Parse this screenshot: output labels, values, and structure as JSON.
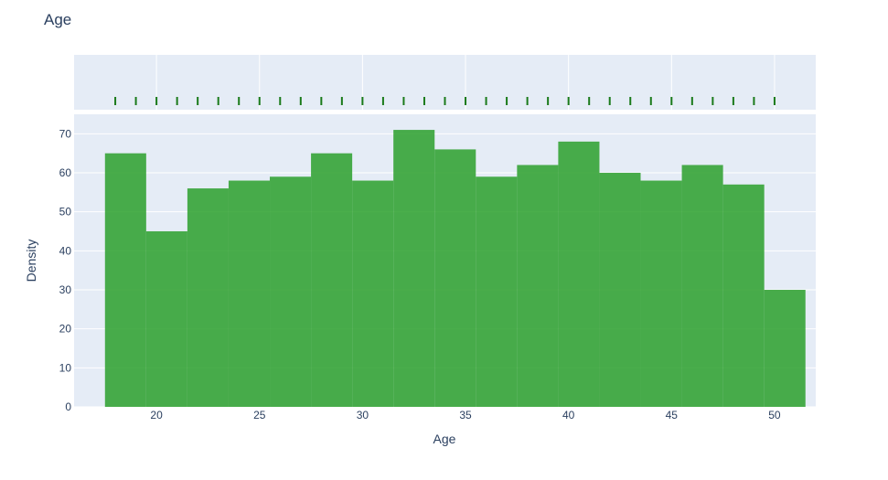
{
  "chart_data": {
    "type": "bar",
    "title": "Age",
    "xlabel": "Age",
    "ylabel": "Density",
    "xlim": [
      16,
      52
    ],
    "ylim": [
      0,
      75
    ],
    "grid": true,
    "bar_color": "#2ca02c",
    "plot_bg": "#e5ecf6",
    "x_ticks": [
      20,
      25,
      30,
      35,
      40,
      45,
      50
    ],
    "y_ticks": [
      0,
      10,
      20,
      30,
      40,
      50,
      60,
      70
    ],
    "bins": [
      {
        "x0": 17.5,
        "x1": 19.5,
        "value": 65
      },
      {
        "x0": 19.5,
        "x1": 21.5,
        "value": 45
      },
      {
        "x0": 21.5,
        "x1": 23.5,
        "value": 56
      },
      {
        "x0": 23.5,
        "x1": 25.5,
        "value": 58
      },
      {
        "x0": 25.5,
        "x1": 27.5,
        "value": 59
      },
      {
        "x0": 27.5,
        "x1": 29.5,
        "value": 65
      },
      {
        "x0": 29.5,
        "x1": 31.5,
        "value": 58
      },
      {
        "x0": 31.5,
        "x1": 33.5,
        "value": 71
      },
      {
        "x0": 33.5,
        "x1": 35.5,
        "value": 66
      },
      {
        "x0": 35.5,
        "x1": 37.5,
        "value": 59
      },
      {
        "x0": 37.5,
        "x1": 39.5,
        "value": 62
      },
      {
        "x0": 39.5,
        "x1": 41.5,
        "value": 68
      },
      {
        "x0": 41.5,
        "x1": 43.5,
        "value": 60
      },
      {
        "x0": 43.5,
        "x1": 45.5,
        "value": 58
      },
      {
        "x0": 45.5,
        "x1": 47.5,
        "value": 62
      },
      {
        "x0": 47.5,
        "x1": 49.5,
        "value": 57
      },
      {
        "x0": 49.5,
        "x1": 51.5,
        "value": 30
      }
    ],
    "rug_x": [
      18,
      19,
      20,
      21,
      22,
      23,
      24,
      25,
      26,
      27,
      28,
      29,
      30,
      31,
      32,
      33,
      34,
      35,
      36,
      37,
      38,
      39,
      40,
      41,
      42,
      43,
      44,
      45,
      46,
      47,
      48,
      49,
      50
    ]
  }
}
